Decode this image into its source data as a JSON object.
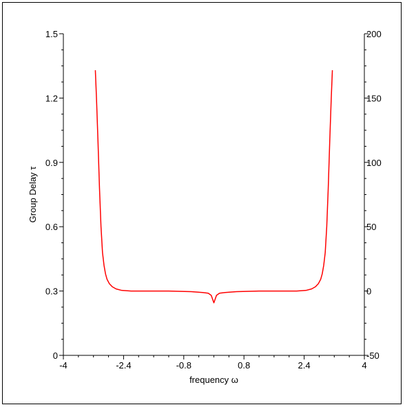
{
  "chart_data": {
    "type": "line",
    "xlabel": "frequency ω",
    "ylabel": "Group Delay  τ",
    "xlim": [
      -4,
      4
    ],
    "ylim_left": [
      0,
      1.5
    ],
    "ylim_right": [
      -50,
      200
    ],
    "x_ticks": [
      "-4",
      "-2.4",
      "-0.8",
      "0.8",
      "2.4",
      "4"
    ],
    "y_ticks_left": [
      "0",
      "0.3",
      "0.6",
      "0.9",
      "1.2",
      "1.5"
    ],
    "y_ticks_right": [
      "-50",
      "0",
      "50",
      "100",
      "150",
      "200"
    ],
    "grid": false,
    "series": [
      {
        "color": "#ff0000",
        "x": [
          -3.15,
          -3.12,
          -3.08,
          -3.04,
          -3.0,
          -2.96,
          -2.92,
          -2.88,
          -2.84,
          -2.78,
          -2.7,
          -2.6,
          -2.45,
          -2.2,
          -1.8,
          -1.2,
          -0.6,
          -0.3,
          -0.15,
          -0.07,
          -0.03,
          0.0,
          0.03,
          0.07,
          0.15,
          0.3,
          0.6,
          1.2,
          1.8,
          2.2,
          2.45,
          2.6,
          2.7,
          2.78,
          2.84,
          2.88,
          2.92,
          2.96,
          3.0,
          3.04,
          3.08,
          3.12,
          3.15
        ],
        "y": [
          1.33,
          1.2,
          1.0,
          0.78,
          0.6,
          0.48,
          0.42,
          0.38,
          0.355,
          0.335,
          0.32,
          0.31,
          0.303,
          0.3,
          0.3,
          0.3,
          0.297,
          0.293,
          0.29,
          0.28,
          0.26,
          0.245,
          0.26,
          0.28,
          0.29,
          0.293,
          0.297,
          0.3,
          0.3,
          0.3,
          0.303,
          0.31,
          0.32,
          0.335,
          0.355,
          0.38,
          0.42,
          0.48,
          0.6,
          0.78,
          1.0,
          1.2,
          1.33
        ]
      }
    ]
  }
}
